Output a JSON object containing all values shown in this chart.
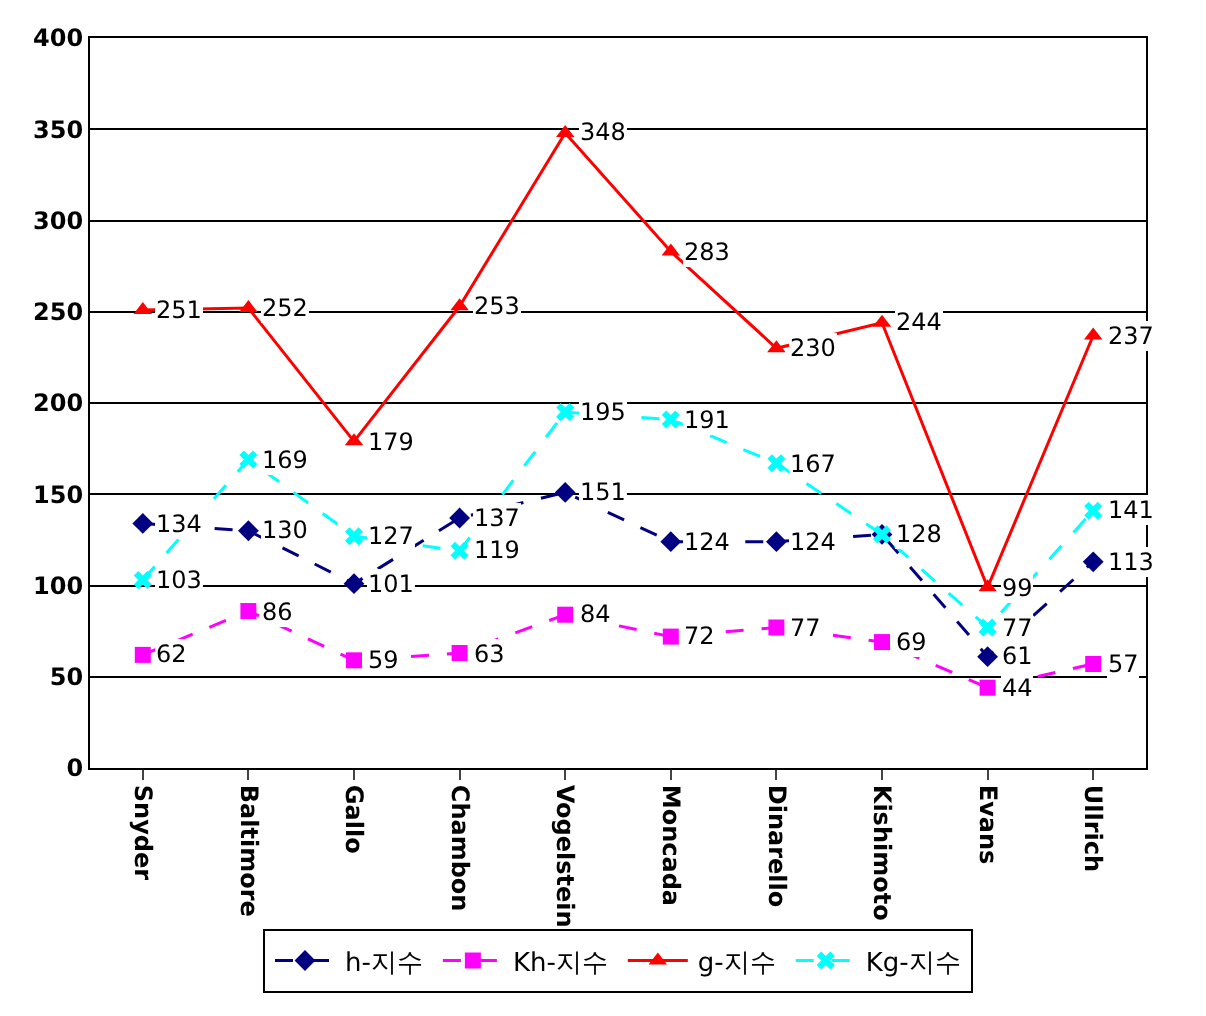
{
  "chart_data": {
    "type": "line",
    "categories": [
      "Snyder",
      "Baltimore",
      "Gallo",
      "Chambon",
      "Vogelstein",
      "Moncada",
      "Dinarello",
      "Kishimoto",
      "Evans",
      "Ullrich"
    ],
    "ylim": [
      0,
      400
    ],
    "yticks": [
      0,
      50,
      100,
      150,
      200,
      250,
      300,
      350,
      400
    ],
    "grid": "y",
    "legend": "bottom",
    "data_labels": true,
    "series": [
      {
        "name": "h-지수",
        "color": "#000080",
        "marker": "diamond",
        "line_style": "dashed",
        "values": [
          134,
          130,
          101,
          137,
          151,
          124,
          124,
          128,
          61,
          113
        ]
      },
      {
        "name": "Kh-지수",
        "color": "#ff00ff",
        "marker": "square",
        "line_style": "dashed",
        "values": [
          62,
          86,
          59,
          63,
          84,
          72,
          77,
          69,
          44,
          57
        ]
      },
      {
        "name": "g-지수",
        "color": "#ff0000",
        "marker": "triangle",
        "line_style": "solid",
        "values": [
          251,
          252,
          179,
          253,
          348,
          283,
          230,
          244,
          99,
          237
        ]
      },
      {
        "name": "Kg-지수",
        "color": "#00ffff",
        "marker": "cross",
        "line_style": "dashed",
        "values": [
          103,
          169,
          127,
          119,
          195,
          191,
          167,
          128,
          77,
          141
        ],
        "value_labels": [
          "103",
          "169",
          "127",
          "119",
          "195",
          "191",
          "167",
          null,
          "77",
          "141"
        ]
      }
    ]
  }
}
